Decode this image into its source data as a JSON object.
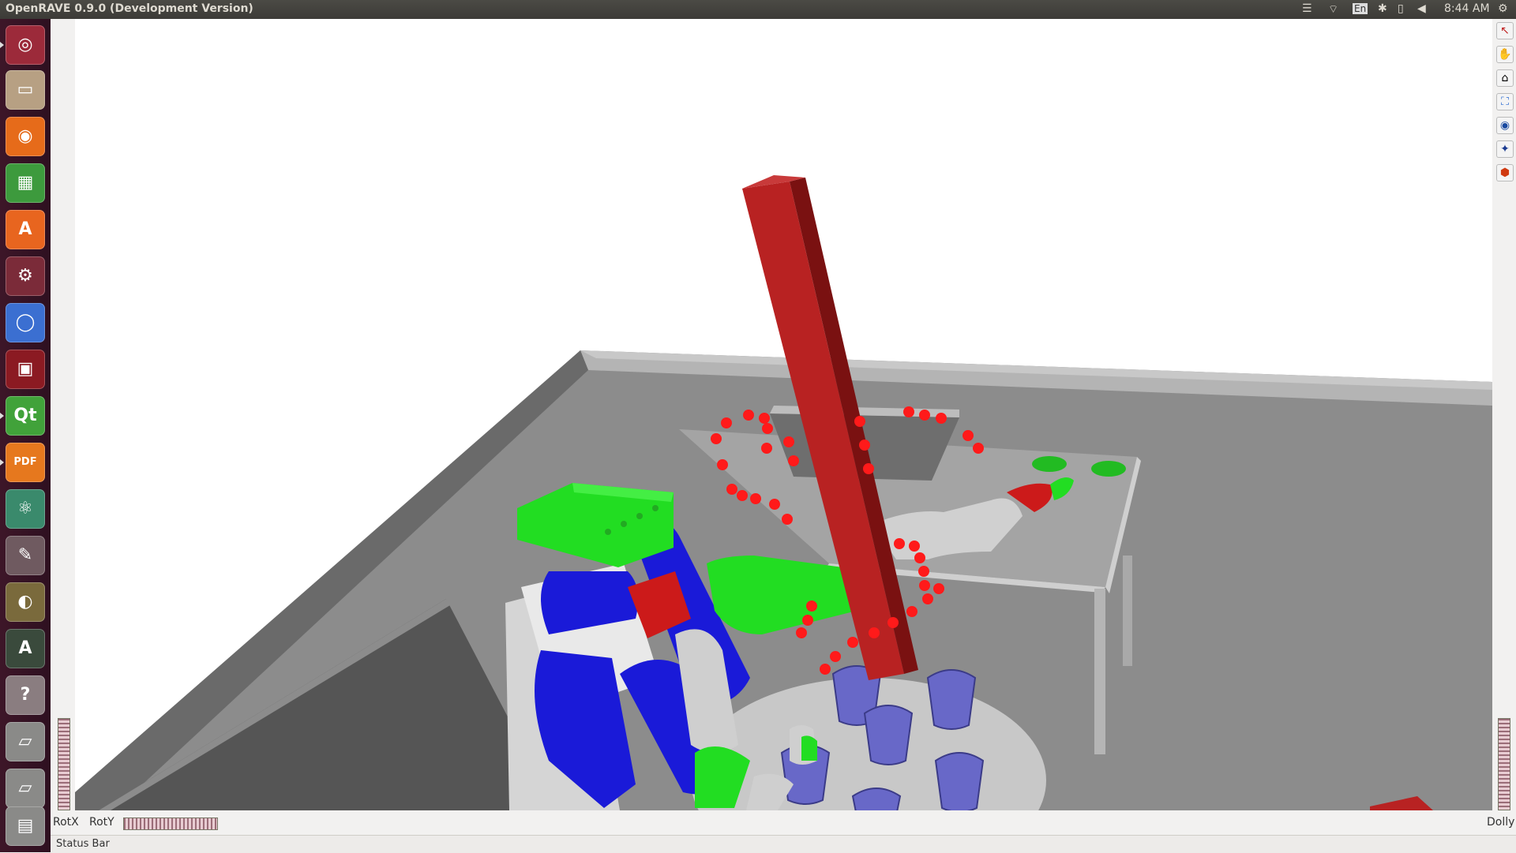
{
  "window": {
    "title": "OpenRAVE 0.9.0 (Development Version)"
  },
  "topbar": {
    "keyboard_layout": "En",
    "clock": "8:44 AM",
    "indicators": [
      "menu-icon",
      "wifi-icon",
      "keyboard-icon",
      "bluetooth-icon",
      "battery-icon",
      "volume-icon",
      "settings-gear-icon"
    ]
  },
  "launcher": {
    "items": [
      {
        "name": "ubuntu-dash-icon",
        "glyph": "◎",
        "color": "#9c2a3a"
      },
      {
        "name": "files-icon",
        "glyph": "▭",
        "color": "#b7a083"
      },
      {
        "name": "firefox-icon",
        "glyph": "◉",
        "color": "#e66b1a"
      },
      {
        "name": "spreadsheet-icon",
        "glyph": "▦",
        "color": "#3d9a3d"
      },
      {
        "name": "software-center-icon",
        "glyph": "A",
        "color": "#e8651f"
      },
      {
        "name": "system-settings-icon",
        "glyph": "⚙",
        "color": "#7b2b39"
      },
      {
        "name": "chromium-icon",
        "glyph": "◯",
        "color": "#3b6fd1"
      },
      {
        "name": "terminal-icon",
        "glyph": "▣",
        "color": "#8b1a22"
      },
      {
        "name": "qt-creator-icon",
        "glyph": "Qt",
        "color": "#41a23a"
      },
      {
        "name": "pdf-reader-icon",
        "glyph": "PDF",
        "color": "#e6781e"
      },
      {
        "name": "atom-editor-icon",
        "glyph": "⚛",
        "color": "#3a8a6c"
      },
      {
        "name": "text-editor-icon",
        "glyph": "✎",
        "color": "#6f5a60"
      },
      {
        "name": "image-viewer-icon",
        "glyph": "◐",
        "color": "#7a6a3c"
      },
      {
        "name": "software-updater-icon",
        "glyph": "A",
        "color": "#3a4a3c"
      },
      {
        "name": "help-icon",
        "glyph": "?",
        "color": "#8a7d80"
      },
      {
        "name": "drive-icon",
        "glyph": "▱",
        "color": "#8a8a88"
      },
      {
        "name": "drive-icon-2",
        "glyph": "▱",
        "color": "#8a8a88"
      },
      {
        "name": "trash-icon",
        "glyph": "▤",
        "color": "#8a8a88"
      }
    ]
  },
  "viewer": {
    "bottom_labels": {
      "rot_x": "RotX",
      "rot_y": "RotY",
      "dolly": "Dolly"
    },
    "status_bar": "Status Bar",
    "toolbar": [
      {
        "name": "pointer-tool-icon",
        "glyph": "↖",
        "color": "#c02020"
      },
      {
        "name": "hand-tool-icon",
        "glyph": "✋",
        "color": "#333333"
      },
      {
        "name": "home-view-icon",
        "glyph": "⌂",
        "color": "#222222"
      },
      {
        "name": "view-all-icon",
        "glyph": "⛶",
        "color": "#2a6ad0"
      },
      {
        "name": "perspective-icon",
        "glyph": "◉",
        "color": "#1a4aa0"
      },
      {
        "name": "seek-icon",
        "glyph": "✦",
        "color": "#1a3a90"
      },
      {
        "name": "collision-icon",
        "glyph": "⬢",
        "color": "#d03a10"
      }
    ]
  },
  "scene": {
    "colors": {
      "floor_top": "#8c8c8c",
      "wall": "#5a5a5a",
      "wall_rim": "#b4b4b4",
      "table_top": "#9a9a9a",
      "table_edge": "#c8c8c8",
      "pole_front": "#b82222",
      "pole_side": "#7a1111",
      "robot_blue": "#1a1ad8",
      "robot_green": "#22dd22",
      "robot_grey": "#cfcfcf",
      "mug": "#6868c8",
      "trajectory": "#ff1a1a"
    }
  }
}
